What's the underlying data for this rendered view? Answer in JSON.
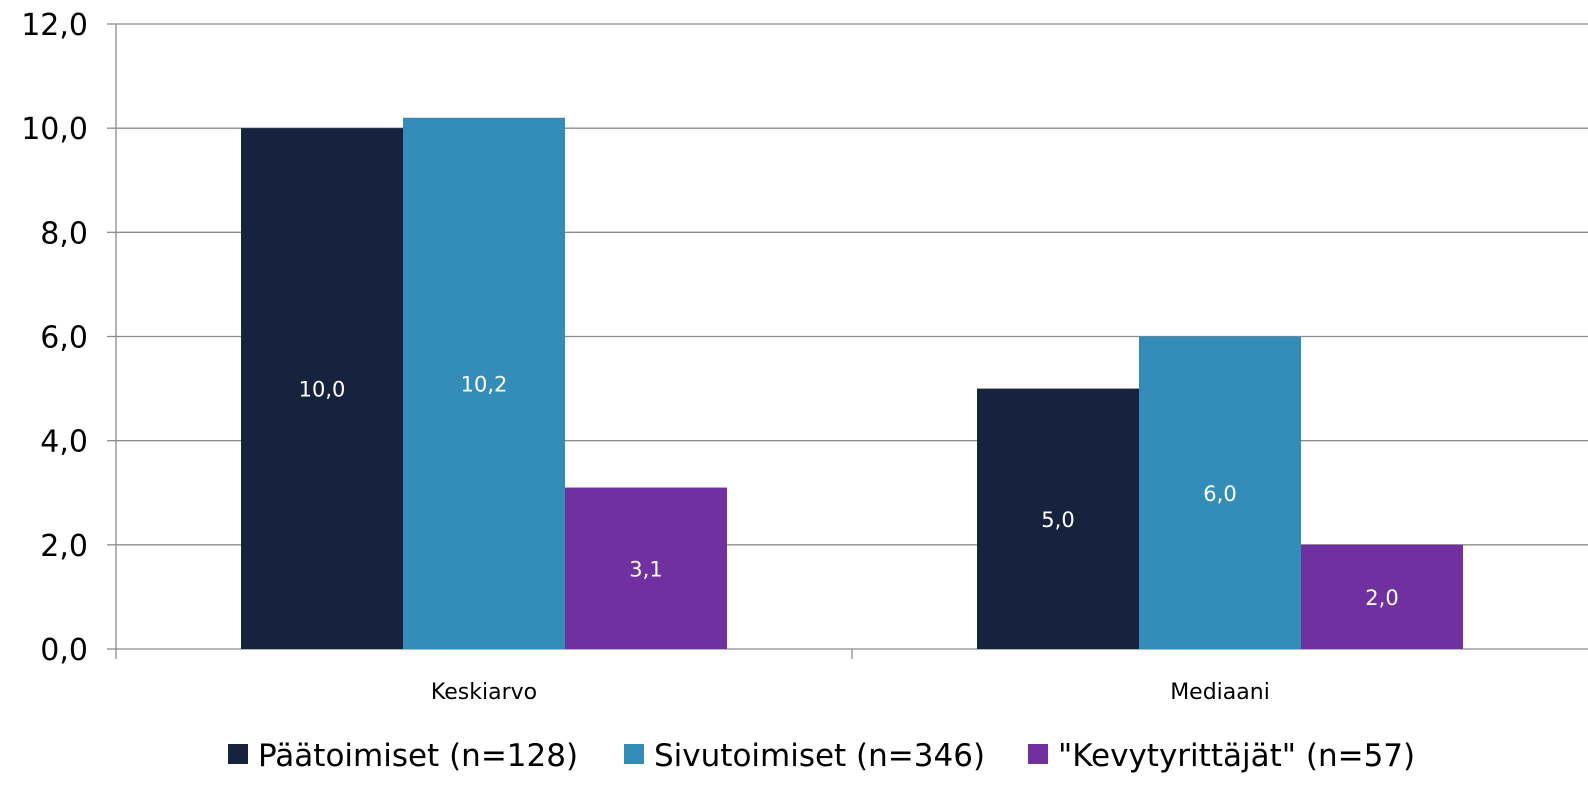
{
  "chart_data": {
    "type": "bar",
    "categories": [
      "Keskiarvo",
      "Mediaani"
    ],
    "series": [
      {
        "name": "Päätoimiset (n=128)",
        "values": [
          10.0,
          5.0
        ],
        "labels": [
          "10,0",
          "5,0"
        ],
        "color": "#17223f"
      },
      {
        "name": "Sivutoimiset (n=346)",
        "values": [
          10.2,
          6.0
        ],
        "labels": [
          "10,2",
          "6,0"
        ],
        "color": "#348db8"
      },
      {
        "name": "\"Kevytyrittäjät\" (n=57)",
        "values": [
          3.1,
          2.0
        ],
        "labels": [
          "3,1",
          "2,0"
        ],
        "color": "#7030a0"
      }
    ],
    "yticks": [
      0,
      2,
      4,
      6,
      8,
      10,
      12
    ],
    "ytick_labels": [
      "0,0",
      "2,0",
      "4,0",
      "6,0",
      "8,0",
      "10,0",
      "12,0"
    ],
    "ylim": [
      0,
      12
    ],
    "title": "",
    "xlabel": "",
    "ylabel": "",
    "grid": true,
    "legend_position": "bottom"
  }
}
